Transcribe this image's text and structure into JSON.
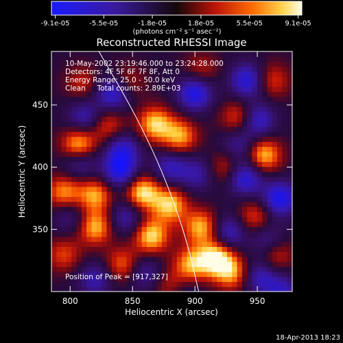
{
  "chart_data": {
    "type": "heatmap",
    "title": "Reconstructed RHESSI Image",
    "xlabel": "Heliocentric X (arcsec)",
    "ylabel": "Heliocentric Y (arcsec)",
    "xlim": [
      785,
      978
    ],
    "ylim": [
      300,
      493
    ],
    "x_ticks": [
      800,
      850,
      900,
      950
    ],
    "y_ticks": [
      350,
      400,
      450
    ],
    "colorbar": {
      "ticks": [
        "-9.1e-05",
        "-5.5e-05",
        "-1.8e-05",
        "1.8e-05",
        "5.5e-05",
        "9.1e-05"
      ],
      "unit": "(photons cm⁻² s⁻¹ asec⁻²)",
      "range": [
        -9.1e-05,
        9.1e-05
      ]
    },
    "annotations": [
      "10-May-2002 23:19:46.000 to 23:24:28.000",
      "Detectors: 4F 5F 6F 7F 8F, Att 0",
      "Energy Range: 25.0 - 50.0 keV",
      "Clean     Total counts: 2.89E+03"
    ],
    "peak_label": "Position of Peak = [917,327]",
    "peak": {
      "x": 917,
      "y": 327
    },
    "limb_curve": [
      [
        823,
        493
      ],
      [
        848,
        450
      ],
      [
        868,
        410
      ],
      [
        884,
        370
      ],
      [
        895,
        335
      ],
      [
        903,
        300
      ]
    ],
    "features": [
      {
        "x": 807,
        "y": 418,
        "v": 0.95
      },
      {
        "x": 830,
        "y": 434,
        "v": 0.55
      },
      {
        "x": 868,
        "y": 435,
        "v": 0.85
      },
      {
        "x": 888,
        "y": 425,
        "v": 0.75
      },
      {
        "x": 935,
        "y": 440,
        "v": 0.6
      },
      {
        "x": 955,
        "y": 410,
        "v": 0.85
      },
      {
        "x": 962,
        "y": 470,
        "v": 0.5
      },
      {
        "x": 845,
        "y": 468,
        "v": 0.45
      },
      {
        "x": 905,
        "y": 478,
        "v": 0.4
      },
      {
        "x": 925,
        "y": 400,
        "v": 0.5
      },
      {
        "x": 795,
        "y": 380,
        "v": 0.7
      },
      {
        "x": 820,
        "y": 378,
        "v": 0.75
      },
      {
        "x": 820,
        "y": 352,
        "v": 0.8
      },
      {
        "x": 858,
        "y": 380,
        "v": 0.95
      },
      {
        "x": 880,
        "y": 370,
        "v": 0.85
      },
      {
        "x": 865,
        "y": 345,
        "v": 0.9
      },
      {
        "x": 905,
        "y": 352,
        "v": 0.8
      },
      {
        "x": 948,
        "y": 360,
        "v": 0.55
      },
      {
        "x": 917,
        "y": 327,
        "v": 1.0
      },
      {
        "x": 897,
        "y": 322,
        "v": 0.75
      },
      {
        "x": 930,
        "y": 315,
        "v": 0.7
      },
      {
        "x": 842,
        "y": 322,
        "v": 0.6
      },
      {
        "x": 795,
        "y": 330,
        "v": 0.5
      },
      {
        "x": 965,
        "y": 330,
        "v": 0.5
      },
      {
        "x": 810,
        "y": 468,
        "v": 0.4
      },
      {
        "x": 880,
        "y": 305,
        "v": 0.45
      },
      {
        "x": 835,
        "y": 460,
        "v": -0.85
      },
      {
        "x": 900,
        "y": 460,
        "v": -0.9
      },
      {
        "x": 942,
        "y": 470,
        "v": -0.8
      },
      {
        "x": 950,
        "y": 438,
        "v": -0.75
      },
      {
        "x": 842,
        "y": 415,
        "v": -0.65
      },
      {
        "x": 812,
        "y": 440,
        "v": -0.6
      },
      {
        "x": 840,
        "y": 397,
        "v": -0.85
      },
      {
        "x": 880,
        "y": 400,
        "v": -0.6
      },
      {
        "x": 902,
        "y": 395,
        "v": -0.5
      },
      {
        "x": 940,
        "y": 392,
        "v": -0.85
      },
      {
        "x": 935,
        "y": 418,
        "v": -0.5
      },
      {
        "x": 968,
        "y": 375,
        "v": -0.9
      },
      {
        "x": 808,
        "y": 405,
        "v": -0.6
      },
      {
        "x": 800,
        "y": 360,
        "v": -0.4
      },
      {
        "x": 845,
        "y": 360,
        "v": -0.55
      },
      {
        "x": 927,
        "y": 348,
        "v": -0.65
      },
      {
        "x": 958,
        "y": 342,
        "v": -0.5
      },
      {
        "x": 952,
        "y": 312,
        "v": -0.6
      },
      {
        "x": 860,
        "y": 315,
        "v": -0.5
      },
      {
        "x": 820,
        "y": 310,
        "v": -0.55
      },
      {
        "x": 890,
        "y": 300,
        "v": -0.3
      },
      {
        "x": 970,
        "y": 300,
        "v": -0.6
      }
    ]
  },
  "timestamp": "18-Apr-2013 18:23"
}
